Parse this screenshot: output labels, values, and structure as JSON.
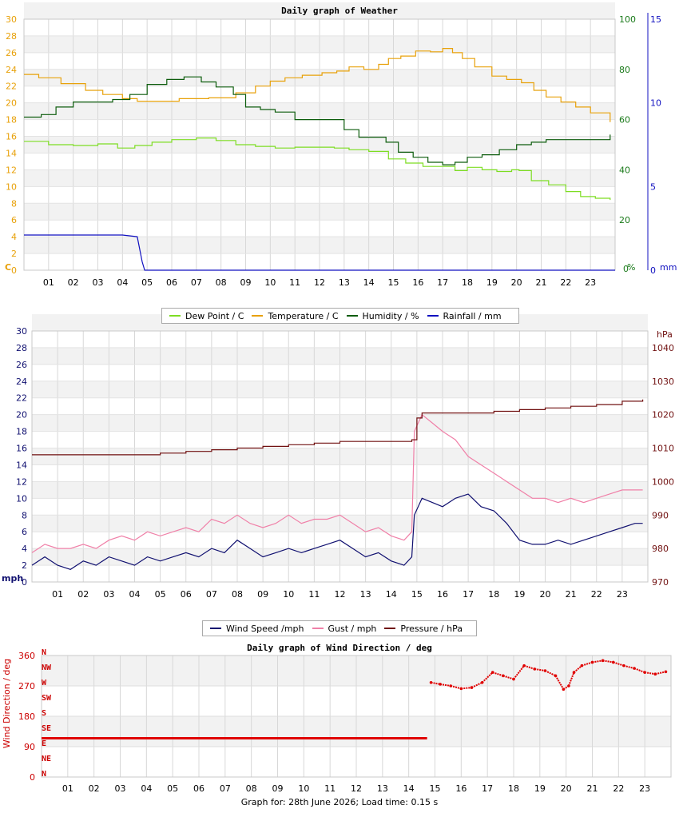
{
  "weather_title": "Daily graph of Weather",
  "wind_title": "Daily graph of Wind Direction / deg",
  "footer_text": "Graph for: 28th June 2026; Load time: 0.15 s",
  "weather_legend": [
    {
      "label": "Dew Point / C",
      "color": "#7ddd22"
    },
    {
      "label": "Temperature / C",
      "color": "#e8a10a"
    },
    {
      "label": "Humidity / %",
      "color": "#0c5c0c"
    },
    {
      "label": "Rainfall / mm",
      "color": "#1010c0"
    }
  ],
  "wind_legend": [
    {
      "label": "Wind Speed /mph",
      "color": "#101070"
    },
    {
      "label": "Gust / mph",
      "color": "#f080a8"
    },
    {
      "label": "Pressure / hPa",
      "color": "#701010"
    }
  ],
  "chart_data": [
    {
      "type": "line",
      "title": "Daily graph of Weather",
      "x_ticks": [
        "01",
        "02",
        "03",
        "04",
        "05",
        "06",
        "07",
        "08",
        "09",
        "10",
        "11",
        "12",
        "13",
        "14",
        "15",
        "16",
        "17",
        "18",
        "19",
        "20",
        "21",
        "22",
        "23"
      ],
      "xlim": [
        0,
        24
      ],
      "axes": {
        "left": {
          "unit": "C",
          "ylim": [
            0,
            30
          ],
          "ticks": [
            0,
            2,
            4,
            6,
            8,
            10,
            12,
            14,
            16,
            18,
            20,
            22,
            24,
            26,
            28,
            30
          ],
          "color": "#e8a10a"
        },
        "right1": {
          "unit": "%",
          "ylim": [
            0,
            100
          ],
          "ticks": [
            0,
            20,
            40,
            60,
            80,
            100
          ],
          "color": "#1a7a1a"
        },
        "right2": {
          "unit": "mm",
          "ylim": [
            0,
            15
          ],
          "ticks": [
            0,
            5,
            10,
            15
          ],
          "color": "#1010c0"
        }
      },
      "series": [
        {
          "name": "Temperature / C",
          "axis": "left",
          "color": "#e8a10a",
          "x": [
            0,
            0.6,
            1.5,
            2.5,
            3.2,
            4.0,
            4.6,
            5.5,
            6.3,
            7.5,
            8.6,
            9.4,
            10.0,
            10.6,
            11.3,
            12.1,
            12.7,
            13.2,
            13.8,
            14.4,
            14.8,
            15.3,
            15.9,
            16.5,
            17.0,
            17.4,
            17.8,
            18.3,
            19.0,
            19.6,
            20.2,
            20.7,
            21.2,
            21.8,
            22.4,
            23.0,
            23.8
          ],
          "y": [
            23.4,
            23.0,
            22.3,
            21.5,
            21.0,
            20.5,
            20.2,
            20.2,
            20.5,
            20.6,
            21.2,
            22.0,
            22.6,
            23.0,
            23.3,
            23.6,
            23.8,
            24.3,
            24.0,
            24.6,
            25.3,
            25.6,
            26.2,
            26.1,
            26.5,
            26.0,
            25.3,
            24.3,
            23.2,
            22.8,
            22.4,
            21.5,
            20.7,
            20.1,
            19.5,
            18.8,
            17.7
          ]
        },
        {
          "name": "Dew Point / C",
          "axis": "left",
          "color": "#7ddd22",
          "x": [
            0,
            1.0,
            2.0,
            3.0,
            3.8,
            4.5,
            5.2,
            6.0,
            7.0,
            7.8,
            8.6,
            9.4,
            10.2,
            11.0,
            12.0,
            12.6,
            13.2,
            14.0,
            14.8,
            15.5,
            16.2,
            17.0,
            17.5,
            18.0,
            18.6,
            19.2,
            19.8,
            20.1,
            20.6,
            21.3,
            22.0,
            22.6,
            23.2,
            23.8
          ],
          "y": [
            15.4,
            15.0,
            14.9,
            15.1,
            14.6,
            14.9,
            15.3,
            15.6,
            15.8,
            15.5,
            15.0,
            14.8,
            14.6,
            14.7,
            14.7,
            14.6,
            14.4,
            14.2,
            13.3,
            12.8,
            12.4,
            12.4,
            11.9,
            12.3,
            12.0,
            11.8,
            12.0,
            11.9,
            10.7,
            10.2,
            9.4,
            8.8,
            8.6,
            8.4
          ]
        },
        {
          "name": "Humidity / %",
          "axis": "right1",
          "color": "#0c5c0c",
          "x": [
            0,
            0.7,
            1.3,
            2.0,
            2.8,
            3.6,
            4.3,
            5.0,
            5.8,
            6.5,
            7.2,
            7.8,
            8.5,
            9.0,
            9.6,
            10.2,
            11.0,
            12.0,
            12.5,
            13.0,
            13.6,
            14.2,
            14.7,
            15.2,
            15.8,
            16.4,
            17.0,
            17.5,
            18.0,
            18.6,
            19.3,
            20.0,
            20.6,
            21.2,
            21.8,
            22.4,
            23.0,
            23.8
          ],
          "y": [
            61,
            62,
            65,
            67,
            67,
            68,
            70,
            74,
            76,
            77,
            75,
            73,
            70,
            65,
            64,
            63,
            60,
            60,
            60,
            56,
            53,
            53,
            51,
            47,
            45,
            43,
            42,
            43,
            45,
            46,
            48,
            50,
            51,
            52,
            52,
            52,
            52,
            54
          ]
        },
        {
          "name": "Rainfall / mm",
          "axis": "right2",
          "color": "#1010c0",
          "x": [
            0,
            2.0,
            4.0,
            4.6,
            4.8,
            4.9,
            24
          ],
          "y": [
            2.1,
            2.1,
            2.1,
            2.0,
            0.5,
            0,
            0
          ]
        }
      ]
    },
    {
      "type": "line",
      "title": "",
      "x_ticks": [
        "01",
        "02",
        "03",
        "04",
        "05",
        "06",
        "07",
        "08",
        "09",
        "10",
        "11",
        "12",
        "13",
        "14",
        "15",
        "16",
        "17",
        "18",
        "19",
        "20",
        "21",
        "22",
        "23"
      ],
      "xlim": [
        0,
        24
      ],
      "axes": {
        "left": {
          "unit": "mph",
          "ylim": [
            0,
            30
          ],
          "ticks": [
            0,
            2,
            4,
            6,
            8,
            10,
            12,
            14,
            16,
            18,
            20,
            22,
            24,
            26,
            28,
            30
          ],
          "color": "#101070"
        },
        "right": {
          "unit": "hPa",
          "ylim": [
            970,
            1045
          ],
          "ticks": [
            970,
            980,
            990,
            1000,
            1010,
            1020,
            1030,
            1040
          ],
          "color": "#701010"
        }
      },
      "series": [
        {
          "name": "Wind Speed /mph",
          "axis": "left",
          "color": "#101070",
          "x": [
            0,
            0.5,
            1.0,
            1.5,
            2.0,
            2.5,
            3.0,
            3.5,
            4.0,
            4.5,
            5.0,
            5.5,
            6.0,
            6.5,
            7.0,
            7.5,
            8.0,
            8.5,
            9.0,
            9.5,
            10.0,
            10.5,
            11.0,
            11.5,
            12.0,
            12.5,
            13.0,
            13.5,
            14.0,
            14.5,
            14.8,
            14.9,
            15.2,
            15.6,
            16.0,
            16.5,
            17.0,
            17.5,
            18.0,
            18.5,
            19.0,
            19.5,
            20.0,
            20.5,
            21.0,
            21.5,
            22.0,
            22.5,
            23.0,
            23.5,
            23.8
          ],
          "y": [
            2,
            3,
            2,
            1.5,
            2.5,
            2,
            3,
            2.5,
            2,
            3,
            2.5,
            3,
            3.5,
            3,
            4,
            3.5,
            5,
            4,
            3,
            3.5,
            4,
            3.5,
            4,
            4.5,
            5,
            4,
            3,
            3.5,
            2.5,
            2,
            3,
            8,
            10,
            9.5,
            9,
            10,
            10.5,
            9,
            8.5,
            7,
            5,
            4.5,
            4.5,
            5,
            4.5,
            5,
            5.5,
            6,
            6.5,
            7,
            7
          ]
        },
        {
          "name": "Gust / mph",
          "axis": "left",
          "color": "#f080a8",
          "x": [
            0,
            0.5,
            1.0,
            1.5,
            2.0,
            2.5,
            3.0,
            3.5,
            4.0,
            4.5,
            5.0,
            5.5,
            6.0,
            6.5,
            7.0,
            7.5,
            8.0,
            8.5,
            9.0,
            9.5,
            10.0,
            10.5,
            11.0,
            11.5,
            12.0,
            12.5,
            13.0,
            13.5,
            14.0,
            14.5,
            14.8,
            14.9,
            15.2,
            15.6,
            16.0,
            16.5,
            17.0,
            17.5,
            18.0,
            18.5,
            19.0,
            19.5,
            20.0,
            20.5,
            21.0,
            21.5,
            22.0,
            22.5,
            23.0,
            23.5,
            23.8
          ],
          "y": [
            3.5,
            4.5,
            4,
            4,
            4.5,
            4,
            5,
            5.5,
            5,
            6,
            5.5,
            6,
            6.5,
            6,
            7.5,
            7,
            8,
            7,
            6.5,
            7,
            8,
            7,
            7.5,
            7.5,
            8,
            7,
            6,
            6.5,
            5.5,
            5,
            6,
            18,
            20,
            19,
            18,
            17,
            15,
            14,
            13,
            12,
            11,
            10,
            10,
            9.5,
            10,
            9.5,
            10,
            10.5,
            11,
            11,
            11
          ]
        },
        {
          "name": "Pressure / hPa",
          "axis": "right",
          "color": "#701010",
          "x": [
            0,
            1,
            2,
            3,
            4,
            5,
            6,
            7,
            8,
            9,
            10,
            11,
            12,
            13,
            14,
            14.8,
            15.0,
            15.2,
            16,
            17,
            18,
            19,
            20,
            21,
            22,
            23,
            23.8
          ],
          "y": [
            1008,
            1008,
            1008,
            1008,
            1008,
            1008.5,
            1009,
            1009.5,
            1010,
            1010.5,
            1011,
            1011.5,
            1012,
            1012,
            1012,
            1012.5,
            1019,
            1020.5,
            1020.5,
            1020.5,
            1021,
            1021.5,
            1022,
            1022.5,
            1023,
            1024,
            1024.5
          ]
        }
      ]
    },
    {
      "type": "scatter",
      "title": "Daily graph of Wind Direction / deg",
      "ylabel": "Wind Direction / deg",
      "x_ticks": [
        "01",
        "02",
        "03",
        "04",
        "05",
        "06",
        "07",
        "08",
        "09",
        "10",
        "11",
        "12",
        "13",
        "14",
        "15",
        "16",
        "17",
        "18",
        "19",
        "20",
        "21",
        "22",
        "23"
      ],
      "xlim": [
        0,
        24
      ],
      "ylim": [
        0,
        360
      ],
      "y_ticks": [
        0,
        90,
        180,
        270,
        360
      ],
      "compass": [
        "N",
        "NE",
        "E",
        "SE",
        "S",
        "SW",
        "W",
        "NW",
        "N"
      ],
      "series": [
        {
          "name": "Wind Direction",
          "color": "#e00000",
          "x": [
            0,
            2,
            4,
            6,
            8,
            10,
            12,
            14,
            14.7,
            14.85,
            15.2,
            15.6,
            16.0,
            16.4,
            16.8,
            17.2,
            17.6,
            18.0,
            18.4,
            18.8,
            19.2,
            19.6,
            19.9,
            20.1,
            20.3,
            20.6,
            21.0,
            21.4,
            21.8,
            22.2,
            22.6,
            23.0,
            23.4,
            23.8
          ],
          "y": [
            115,
            115,
            115,
            115,
            115,
            115,
            115,
            115,
            115,
            280,
            275,
            270,
            262,
            265,
            280,
            310,
            300,
            290,
            330,
            320,
            315,
            300,
            260,
            270,
            310,
            330,
            340,
            345,
            340,
            330,
            322,
            310,
            305,
            312
          ]
        }
      ]
    }
  ]
}
